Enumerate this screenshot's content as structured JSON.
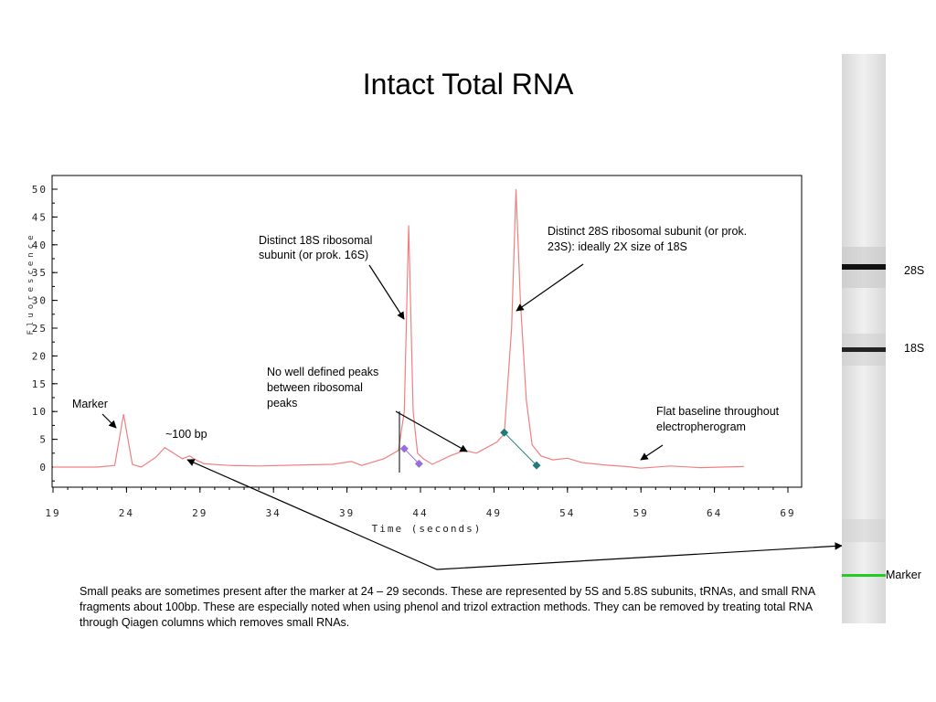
{
  "slide": {
    "title": "Intact Total RNA",
    "caption": "Small peaks are sometimes present after the marker at 24 – 29 seconds.  These are represented by 5S and 5.8S subunits, tRNAs, and small RNA fragments about 100bp.  These are especially noted when using phenol and trizol extraction methods.  They can be removed by treating total RNA through Qiagen columns which removes small RNAs."
  },
  "chart_data": {
    "type": "line",
    "title": "",
    "xlabel": "Time (seconds)",
    "ylabel": "Fluorescence",
    "xlim": [
      19,
      69
    ],
    "ylim": [
      -3,
      52
    ],
    "xticks": [
      19,
      24,
      29,
      34,
      39,
      44,
      49,
      54,
      59,
      64,
      69
    ],
    "yticks": [
      0,
      5,
      10,
      15,
      20,
      25,
      30,
      35,
      40,
      45,
      50
    ],
    "grid": false,
    "series": [
      {
        "color": "#f08080",
        "x": [
          19,
          22,
          23.2,
          23.8,
          24.4,
          25,
          26,
          26.6,
          27.2,
          27.8,
          28.3,
          28.7,
          29.3,
          31,
          33,
          36,
          38,
          39.3,
          40,
          41.5,
          42.5,
          42.9,
          43.2,
          43.5,
          43.8,
          44.2,
          44.8,
          46,
          47,
          47.8,
          48.5,
          49.2,
          49.7,
          50.2,
          50.5,
          50.8,
          51.2,
          51.6,
          52.2,
          53,
          54,
          55,
          56.5,
          58,
          59,
          61,
          63,
          66
        ],
        "y": [
          0,
          0,
          0.3,
          9.5,
          0.5,
          0,
          1.8,
          3.5,
          2.5,
          1.5,
          2,
          1.3,
          0.6,
          0.3,
          0.2,
          0.4,
          0.5,
          1,
          0.3,
          1.5,
          3,
          10,
          43.5,
          10,
          2.5,
          1.5,
          0.5,
          2,
          3,
          2.5,
          3.5,
          4.5,
          6,
          25,
          50,
          30,
          12,
          4,
          2,
          1.3,
          1.6,
          0.8,
          0.4,
          0.1,
          -0.2,
          0.2,
          -0.1,
          0.1
        ]
      }
    ],
    "markers": [
      {
        "x": 42.9,
        "y": 3.3,
        "color": "#9370db"
      },
      {
        "x": 43.9,
        "y": 0.6,
        "color": "#9370db"
      },
      {
        "x": 49.7,
        "y": 6.2,
        "color": "#1f7a78"
      },
      {
        "x": 51.9,
        "y": 0.3,
        "color": "#1f7a78"
      }
    ],
    "annotations": [
      {
        "text": "Marker"
      },
      {
        "text": "~100 bp"
      },
      {
        "text": "Distinct 18S ribosomal",
        "text2": "subunit (or prok. 16S)"
      },
      {
        "text": "Distinct 28S ribosomal subunit (or prok.",
        "text2": "23S): ideally 2X size of 18S"
      },
      {
        "text": "No well defined peaks",
        "text2": "between ribosomal",
        "text3": "peaks"
      },
      {
        "text": "Flat baseline throughout",
        "text2": "electropherogram"
      }
    ]
  },
  "gel": {
    "bands": [
      {
        "label": "28S"
      },
      {
        "label": "18S"
      },
      {
        "label": "Marker",
        "color": "#22cc22"
      }
    ]
  }
}
